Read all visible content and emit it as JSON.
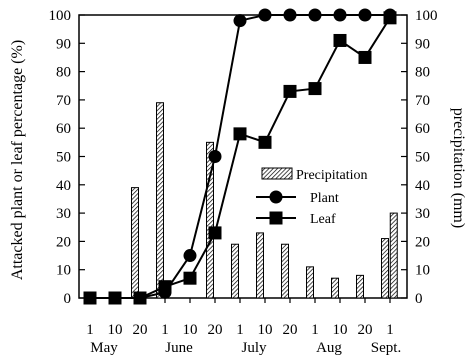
{
  "chart_data": {
    "type": "bar+line",
    "x_ticks": [
      "1",
      "10",
      "20",
      "1",
      "10",
      "20",
      "1",
      "10",
      "20",
      "1",
      "10",
      "20",
      "1"
    ],
    "months": [
      "May",
      "June",
      "July",
      "Aug",
      "Sept."
    ],
    "month_tick_index": [
      0,
      3,
      6,
      9,
      12
    ],
    "ylabel_left": "Attacked plant or leaf percentage (%)",
    "ylabel_right": "precipitation (mm)",
    "ylim_left": [
      0,
      100
    ],
    "ylim_right": [
      0,
      100
    ],
    "yticks": [
      0,
      10,
      20,
      30,
      40,
      50,
      60,
      70,
      80,
      90,
      100
    ],
    "grid": false,
    "legend_position": "center-right",
    "precipitation": {
      "name": "Precipitation",
      "axis": "right",
      "x": [
        1.8,
        2.8,
        4.8,
        5.8,
        6.8,
        7.8,
        8.8,
        9.8,
        10.8,
        11.8
      ],
      "values": [
        39,
        69,
        55,
        19,
        23,
        19,
        11,
        7,
        8,
        21
      ]
    },
    "precipitation_last": {
      "x": 12.15,
      "value": 30
    },
    "series": [
      {
        "name": "Plant",
        "marker": "circle",
        "axis": "left",
        "x": [
          0,
          1,
          2,
          3,
          4,
          5,
          6,
          7,
          8,
          9,
          10,
          11,
          12
        ],
        "values": [
          0,
          0,
          0,
          2,
          15,
          50,
          98,
          100,
          100,
          100,
          100,
          100,
          100
        ]
      },
      {
        "name": "Leaf",
        "marker": "square",
        "axis": "left",
        "x": [
          0,
          1,
          2,
          3,
          4,
          5,
          6,
          7,
          8,
          9,
          10,
          11,
          12
        ],
        "values": [
          0,
          0,
          0,
          4,
          7,
          23,
          58,
          55,
          73,
          74,
          91,
          85,
          99
        ]
      }
    ]
  }
}
